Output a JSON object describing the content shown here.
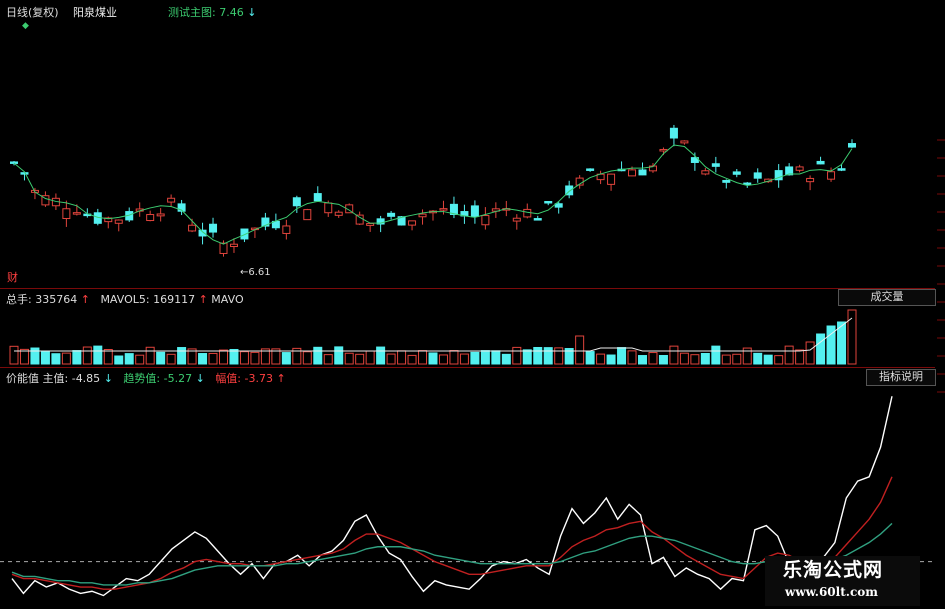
{
  "header": {
    "period": "日线(复权)",
    "stock_name": "阳泉煤业",
    "overlay_label": "测试主图:",
    "overlay_value": "7.46",
    "overlay_arrow": "↓"
  },
  "price_panel": {
    "low_label": "6.61",
    "finance_marker": "财"
  },
  "volume_panel": {
    "vol_label": "总手:",
    "vol_value": "335764",
    "vol_arrow": "↑",
    "mavol5_label": "MAVOL5:",
    "mavol5_value": "169117",
    "mavol5_arrow": "↑",
    "mavo_label": "MAVO",
    "button_label": "成交量"
  },
  "indicator_panel": {
    "name": "价能值",
    "main_label": "主值:",
    "main_value": "-4.85",
    "main_arrow": "↓",
    "trend_label": "趋势值:",
    "trend_value": "-5.27",
    "trend_arrow": "↓",
    "amp_label": "幅值:",
    "amp_value": "-3.73",
    "amp_arrow": "↑",
    "button_label": "指标说明"
  },
  "watermark": {
    "title": "乐淘公式网",
    "url": "www.60lt.com"
  },
  "colors": {
    "up": "#e0443c",
    "down": "#54f0f0",
    "ma_line": "#d8d8d8",
    "main_line": "#ffffff",
    "trend_line": "#c02020",
    "amp_line": "#30a080",
    "label_green": "#3ccc70",
    "label_red": "#ff4040"
  },
  "chart_data": [
    {
      "type": "candlestick",
      "title": "阳泉煤业 日线(复权)",
      "series": [
        {
          "name": "测试主图",
          "values": [
            8.05,
            7.93,
            7.65,
            7.56,
            7.52,
            7.5,
            7.46,
            7.35,
            7.3,
            7.28,
            7.3,
            7.33,
            7.39,
            7.43,
            7.46,
            7.45,
            7.4,
            7.25,
            7.1,
            6.99,
            6.93,
            7.0,
            7.06,
            7.13,
            7.19,
            7.25,
            7.3,
            7.42,
            7.49,
            7.52,
            7.5,
            7.48,
            7.4,
            7.3,
            7.22,
            7.22,
            7.26,
            7.3,
            7.33,
            7.36,
            7.38,
            7.38,
            7.35,
            7.32,
            7.3,
            7.34,
            7.38,
            7.42,
            7.4,
            7.37,
            7.35,
            7.4,
            7.52,
            7.66,
            7.76,
            7.85,
            7.9,
            7.94,
            7.96,
            7.98,
            7.98,
            8.0,
            8.18,
            8.3,
            8.28,
            8.15,
            8.0,
            7.9,
            7.84,
            7.78,
            7.74,
            7.76,
            7.8,
            7.85,
            7.9,
            7.9,
            7.95,
            7.96,
            7.94,
            8.03,
            8.25
          ]
        }
      ],
      "annotations": [
        "6.61"
      ]
    },
    {
      "type": "bar",
      "title": "成交量",
      "series": [
        {
          "name": "总手",
          "values": [
            335764
          ]
        },
        {
          "name": "MAVOL5",
          "values": [
            169117
          ]
        }
      ]
    },
    {
      "type": "line",
      "title": "价能值",
      "series": [
        {
          "name": "主值",
          "values": [
            -8.0,
            -15,
            -9,
            -12,
            -10,
            -13,
            -15,
            -14,
            -16,
            -12,
            -8,
            -9,
            -6,
            0,
            6,
            10,
            14,
            11,
            5,
            -1,
            -6,
            -1,
            -8,
            -1,
            0,
            3,
            -2,
            3,
            5,
            10,
            19,
            22,
            12,
            4,
            1,
            -7,
            -14,
            -9,
            -11,
            -12,
            -13,
            -8,
            -2,
            0,
            -1,
            1,
            -3,
            -6,
            12,
            25,
            18,
            23,
            30,
            20,
            27,
            22,
            -1,
            2,
            -7,
            -3,
            -6,
            -8,
            -13,
            -8,
            -9,
            15,
            17,
            12,
            -1,
            -9,
            -6,
            2,
            9,
            30,
            38,
            40,
            54,
            78
          ]
        },
        {
          "name": "趋势值",
          "values": [
            -6.0,
            -8,
            -8,
            -9,
            -10,
            -11,
            -12,
            -12,
            -13,
            -13,
            -12,
            -11,
            -10,
            -8,
            -5,
            -3,
            0,
            1,
            0,
            -1,
            -1,
            -2,
            -2,
            -1,
            0,
            1,
            2,
            3,
            4,
            6,
            10,
            13,
            13,
            11,
            9,
            6,
            3,
            0,
            -2,
            -4,
            -6,
            -6,
            -5,
            -4,
            -3,
            -2,
            -2,
            -2,
            2,
            7,
            10,
            12,
            15,
            16,
            18,
            19,
            14,
            11,
            7,
            3,
            0,
            -3,
            -6,
            -7,
            -8,
            -3,
            2,
            4,
            3,
            0,
            -2,
            -1,
            2,
            8,
            14,
            20,
            28,
            40
          ]
        },
        {
          "name": "幅值",
          "values": [
            -5.0,
            -7,
            -7,
            -8,
            -9,
            -9,
            -10,
            -10,
            -11,
            -11,
            -11,
            -10,
            -10,
            -9,
            -8,
            -6,
            -4,
            -3,
            -2,
            -2,
            -2,
            -2,
            -2,
            -2,
            -1,
            -1,
            0,
            1,
            2,
            3,
            4,
            6,
            7,
            7,
            7,
            6,
            5,
            3,
            2,
            1,
            0,
            -1,
            -1,
            -1,
            -1,
            -1,
            -1,
            -1,
            0,
            2,
            4,
            5,
            7,
            9,
            11,
            12,
            12,
            11,
            10,
            8,
            6,
            4,
            2,
            0,
            -1,
            -1,
            0,
            1,
            1,
            1,
            0,
            0,
            1,
            3,
            6,
            9,
            13,
            18
          ]
        }
      ]
    }
  ]
}
